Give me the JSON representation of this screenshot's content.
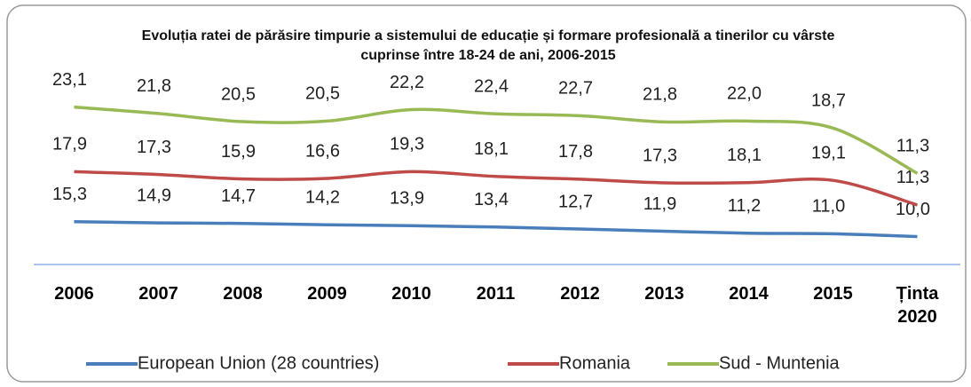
{
  "chart_data": {
    "type": "line",
    "stacked": true,
    "title": "Evoluția ratei de părăsire timpurie a sistemului de educație și formare profesională a tinerilor cu vârste cuprinse între 18-24 de ani, 2006-2015",
    "categories": [
      "2006",
      "2007",
      "2008",
      "2009",
      "2010",
      "2011",
      "2012",
      "2013",
      "2014",
      "2015",
      "Ținta 2020"
    ],
    "ylim": [
      0,
      80
    ],
    "series": [
      {
        "name": "European Union (28 countries)",
        "color": "#4a7ebb",
        "values": [
          15.3,
          14.9,
          14.7,
          14.2,
          13.9,
          13.4,
          12.7,
          11.9,
          11.2,
          11.0,
          10.0
        ],
        "value_labels": [
          "15,3",
          "14,9",
          "14,7",
          "14,2",
          "13,9",
          "13,4",
          "12,7",
          "11,9",
          "11,2",
          "11,0",
          "10,0"
        ]
      },
      {
        "name": "Romania",
        "color": "#be4b48",
        "values": [
          17.9,
          17.3,
          15.9,
          16.6,
          19.3,
          18.1,
          17.8,
          17.3,
          18.1,
          19.1,
          11.3
        ],
        "value_labels": [
          "17,9",
          "17,3",
          "15,9",
          "16,6",
          "19,3",
          "18,1",
          "17,8",
          "17,3",
          "18,1",
          "19,1",
          "11,3"
        ]
      },
      {
        "name": "Sud - Muntenia",
        "color": "#98b954",
        "values": [
          23.1,
          21.8,
          20.5,
          20.5,
          22.2,
          22.4,
          22.7,
          21.8,
          22.0,
          18.7,
          11.3
        ],
        "value_labels": [
          "23,1",
          "21,8",
          "20,5",
          "20,5",
          "22,2",
          "22,4",
          "22,7",
          "21,8",
          "22,0",
          "18,7",
          "11,3"
        ]
      }
    ]
  }
}
